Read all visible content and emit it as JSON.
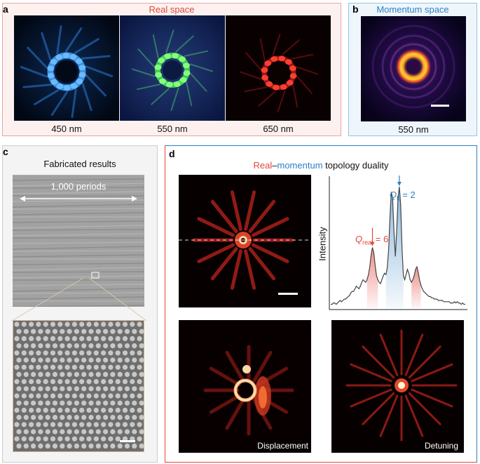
{
  "panel_a": {
    "label": "a",
    "title": "Real space",
    "captions": [
      "450 nm",
      "550 nm",
      "650 nm"
    ]
  },
  "panel_b": {
    "label": "b",
    "title": "Momentum space",
    "caption": "550 nm"
  },
  "panel_c": {
    "label": "c",
    "title": "Fabricated results",
    "periods_label": "1,000 periods"
  },
  "panel_d": {
    "label": "d",
    "title_real": "Real",
    "title_dash": "–",
    "title_momentum": "momentum",
    "title_rest": " topology duality",
    "ylabel": "Intensity",
    "qk_label": "Q",
    "qk_sub": "k",
    "qk_value": " = 2",
    "qreal_label": "Q",
    "qreal_sub": "real",
    "qreal_value": " = 6",
    "inner_labels": [
      "Displacement",
      "Detuning"
    ]
  },
  "colors": {
    "real_red": "#e0473c",
    "momentum_blue": "#2f7fc0",
    "panel_a_border": "#e8a4a4",
    "panel_a_bg": "#fdf1ef",
    "panel_b_border": "#8fc4e6",
    "panel_b_bg": "#eef6fc",
    "panel_c_border": "#cccccc",
    "panel_c_bg": "#f4f4f4"
  },
  "chart_data": {
    "type": "line",
    "title": "",
    "xlabel": "",
    "ylabel": "Intensity",
    "x": [
      0,
      1,
      2,
      3,
      4,
      5,
      6,
      7,
      8,
      9,
      10,
      11,
      12,
      13,
      14,
      15,
      16,
      17,
      18,
      19,
      20,
      21,
      22,
      23,
      24,
      25,
      26,
      27,
      28,
      29,
      30,
      31,
      32,
      33,
      34,
      35,
      36,
      37,
      38,
      39,
      40,
      41,
      42,
      43,
      44,
      45,
      46,
      47,
      48,
      49,
      50,
      51,
      52,
      53,
      54,
      55,
      56,
      57,
      58,
      59,
      60,
      61,
      62,
      63,
      64,
      65,
      66,
      67,
      68,
      69,
      70,
      71,
      72,
      73,
      74,
      75,
      76,
      77,
      78,
      79,
      80,
      81,
      82,
      83,
      84,
      85,
      86,
      87,
      88,
      89,
      90,
      91,
      92,
      93,
      94,
      95,
      96,
      97,
      98,
      99,
      100
    ],
    "series": [
      {
        "values": [
          0.03,
          0.03,
          0.04,
          0.04,
          0.03,
          0.04,
          0.05,
          0.06,
          0.05,
          0.06,
          0.07,
          0.07,
          0.08,
          0.09,
          0.1,
          0.12,
          0.13,
          0.13,
          0.15,
          0.17,
          0.16,
          0.15,
          0.17,
          0.2,
          0.22,
          0.21,
          0.2,
          0.22,
          0.26,
          0.32,
          0.41,
          0.47,
          0.43,
          0.33,
          0.25,
          0.22,
          0.2,
          0.19,
          0.22,
          0.25,
          0.27,
          0.26,
          0.31,
          0.45,
          0.7,
          0.9,
          0.85,
          0.6,
          0.4,
          0.6,
          0.85,
          0.94,
          0.8,
          0.45,
          0.25,
          0.22,
          0.26,
          0.3,
          0.27,
          0.22,
          0.2,
          0.22,
          0.25,
          0.3,
          0.32,
          0.28,
          0.22,
          0.18,
          0.15,
          0.13,
          0.12,
          0.11,
          0.1,
          0.09,
          0.09,
          0.08,
          0.08,
          0.07,
          0.07,
          0.07,
          0.06,
          0.06,
          0.06,
          0.06,
          0.05,
          0.05,
          0.05,
          0.05,
          0.05,
          0.04,
          0.04,
          0.04,
          0.05,
          0.04,
          0.05,
          0.04,
          0.04,
          0.03,
          0.04,
          0.03,
          0.03
        ]
      }
    ],
    "grid": false,
    "legend": "none"
  }
}
